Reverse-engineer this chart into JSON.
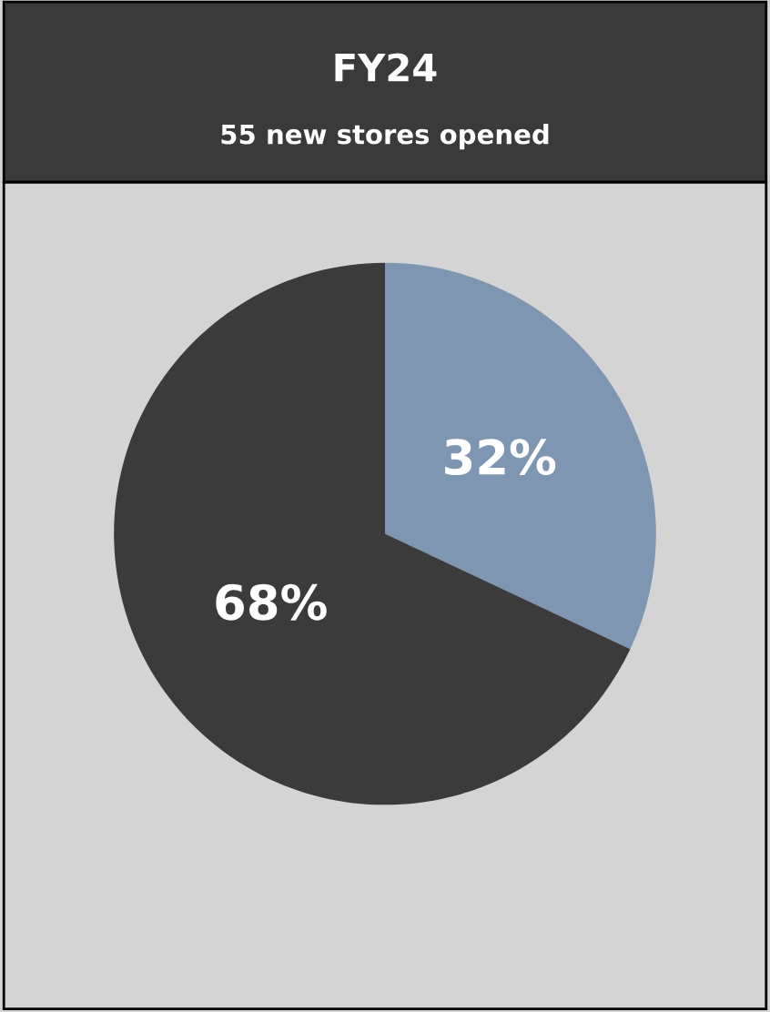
{
  "chart_data": {
    "type": "pie",
    "title": "FY24",
    "subtitle": "55 new stores opened",
    "categories": [
      null,
      null
    ],
    "values": [
      32,
      68
    ],
    "colors": [
      "#7f96b2",
      "#3b3b3b"
    ],
    "value_labels": [
      "32%",
      "68%"
    ],
    "legend": false
  }
}
